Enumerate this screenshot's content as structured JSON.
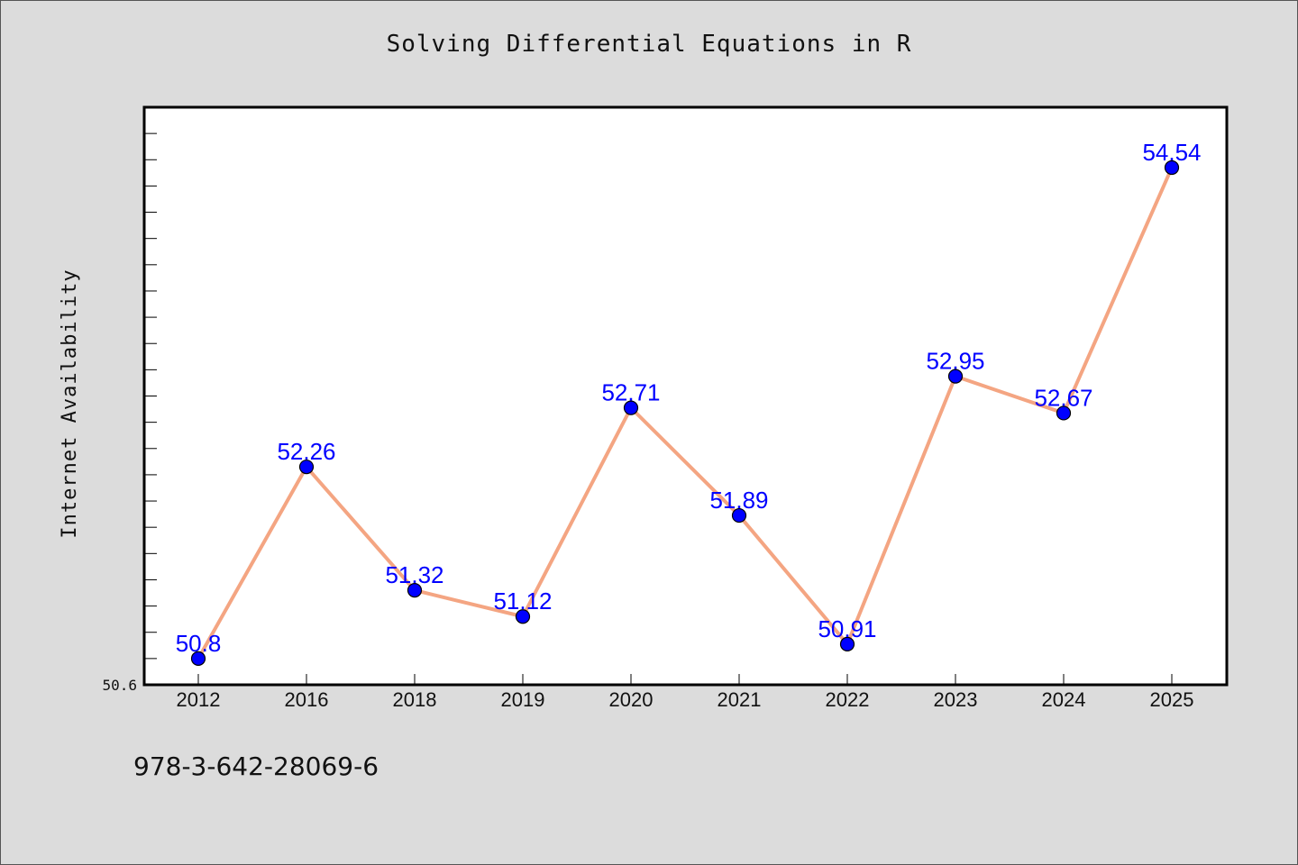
{
  "chart_data": {
    "type": "line",
    "title": "Solving Differential Equations in R",
    "xlabel": "",
    "ylabel": "Internet Availability",
    "categories": [
      "2012",
      "2016",
      "2018",
      "2019",
      "2020",
      "2021",
      "2022",
      "2023",
      "2024",
      "2025"
    ],
    "series": [
      {
        "values": [
          50.8,
          52.26,
          51.32,
          51.12,
          52.71,
          51.89,
          50.91,
          52.95,
          52.67,
          54.54
        ]
      }
    ],
    "data_labels": [
      "50.8",
      "52.26",
      "51.32",
      "51.12",
      "52.71",
      "51.89",
      "50.91",
      "52.95",
      "52.67",
      "54.54"
    ],
    "ylim": [
      50.6,
      55.0
    ],
    "y_tick_labels": [
      "50.6"
    ],
    "grid": false,
    "legend": "none",
    "colors": {
      "line": "#f4a582",
      "marker": "#0000ff",
      "label": "#0000ff",
      "plot_bg": "#ffffff",
      "page_bg": "#dcdcdc"
    }
  },
  "footer": {
    "isbn": "978-3-642-28069-6"
  }
}
